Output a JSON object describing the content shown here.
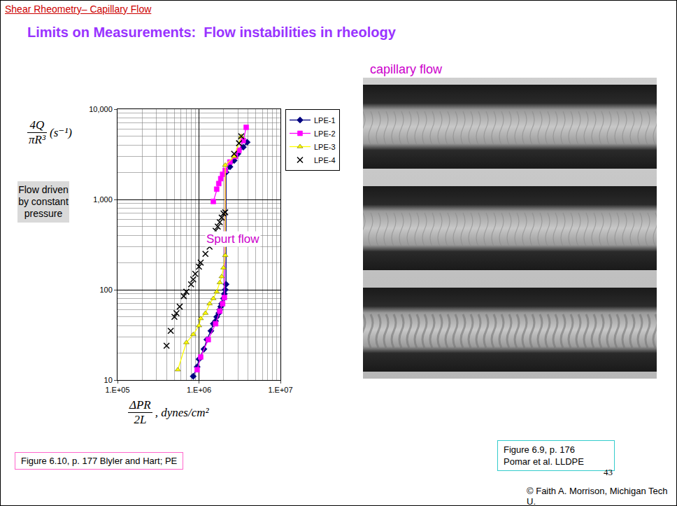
{
  "slide": {
    "header": "Shear Rheometry– Capillary Flow",
    "title": "Limits on Measurements:  Flow instabilities in rheology",
    "photo_title": "capillary flow",
    "photo_caption": [
      "Figure 6.9, p. 176",
      "Pomar et al. LLDPE"
    ],
    "chart_caption": "Figure 6.10, p. 177 Blyler and Hart; PE",
    "page_number": "43",
    "copyright": "© Faith A. Morrison, Michigan Tech U."
  },
  "chart_data": {
    "type": "line",
    "x_label": {
      "numerator": "ΔPR",
      "denominator": "2L",
      "suffix": ",   dynes/cm²"
    },
    "y_label": {
      "numerator": "4Q",
      "denominator": "πR³",
      "suffix": "(s⁻¹)"
    },
    "annotations": [
      {
        "text": "Spurt flow"
      },
      {
        "text": "Flow driven by constant pressure"
      }
    ],
    "log": true,
    "grid": true,
    "legend": "right",
    "xlim": [
      100000,
      10000000
    ],
    "xticks": [
      {
        "value": 100000,
        "label": "1.E+05"
      },
      {
        "value": 1000000,
        "label": "1.E+06"
      },
      {
        "value": 10000000,
        "label": "1.E+07"
      }
    ],
    "ylim": [
      10,
      10000
    ],
    "yticks": [
      10,
      100,
      {
        "value": 1000,
        "label": "1,000"
      },
      {
        "value": 10000,
        "label": "10,000"
      }
    ],
    "series": [
      {
        "name": "LPE-1",
        "color": "#000080",
        "marker": "diamond",
        "line_style": "solid",
        "x": [
          850000,
          950000,
          1000000,
          1150000,
          1250000,
          1400000,
          1500000,
          1600000,
          1650000,
          1750000,
          1800000,
          1850000,
          1900000,
          2000000,
          2050000,
          2100000,
          2150000,
          2150000,
          2400000,
          2700000,
          3000000,
          3500000,
          3900000
        ],
        "values": [
          11,
          14,
          17,
          22,
          28,
          35,
          42,
          45,
          50,
          55,
          60,
          65,
          70,
          80,
          90,
          100,
          115,
          2000,
          2300,
          2700,
          3200,
          3800,
          4300
        ]
      },
      {
        "name": "LPE-2",
        "color": "#ff00ff",
        "marker": "square",
        "line_style": "solid",
        "x": [
          950000,
          1050000,
          1300000,
          1600000,
          1800000,
          1950000,
          2050000,
          2100000,
          2400000,
          2800000,
          3100000,
          3500000,
          3800000,
          null,
          1500000,
          1650000,
          1750000,
          1850000,
          1950000
        ],
        "values": [
          13,
          18,
          28,
          42,
          58,
          70,
          82,
          2100,
          2600,
          3000,
          3500,
          4500,
          6300,
          null,
          950,
          1300,
          1500,
          1700,
          1900
        ]
      },
      {
        "name": "LPE-3",
        "color": "#ffff00",
        "marker": "triangle-up",
        "line_style": "solid",
        "x": [
          550000,
          700000,
          850000,
          1000000,
          1050000,
          1200000,
          1350000,
          1500000,
          1650000,
          1800000,
          1900000,
          2000000,
          2100000,
          2100000,
          2700000,
          3300000
        ],
        "values": [
          13,
          26,
          32,
          40,
          48,
          55,
          70,
          80,
          95,
          120,
          140,
          175,
          240,
          2400,
          3000,
          5000
        ]
      },
      {
        "name": "LPE-4",
        "color": "#000000",
        "marker": "x",
        "line_style": "none",
        "x": [
          400000,
          450000,
          500000,
          530000,
          580000,
          650000,
          700000,
          800000,
          850000,
          900000,
          1000000,
          1050000,
          1200000,
          1350000,
          1500000,
          1600000,
          1700000,
          1800000,
          1900000,
          2000000,
          2100000,
          2700000,
          3100000,
          3300000
        ],
        "values": [
          24,
          35,
          50,
          55,
          65,
          85,
          95,
          115,
          130,
          150,
          180,
          200,
          250,
          300,
          370,
          450,
          500,
          560,
          630,
          700,
          720,
          3200,
          4200,
          5000
        ]
      }
    ]
  }
}
